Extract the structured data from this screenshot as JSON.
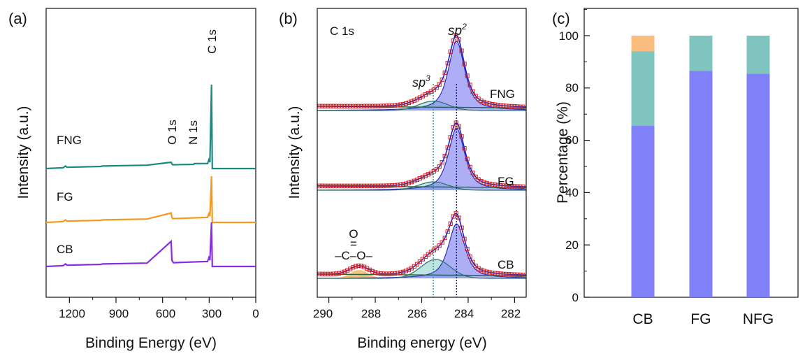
{
  "chart_data": [
    {
      "panel": "(a)",
      "type": "line",
      "xlabel": "Binding Energy (eV)",
      "ylabel": "Intensity (a.u.)",
      "xlim": [
        1350,
        0
      ],
      "xticks": [
        1200,
        900,
        600,
        300,
        0
      ],
      "annotations": [
        "O 1s",
        "N 1s",
        "C 1s"
      ],
      "series": [
        {
          "name": "FNG",
          "color": "#1a8a80",
          "x": [
            1350,
            1240,
            1225,
            1215,
            1000,
            985,
            700,
            545,
            540,
            535,
            400,
            396,
            310,
            302,
            295,
            285,
            280,
            200,
            0
          ],
          "y": [
            1.0,
            1.04,
            1.12,
            1.06,
            1.1,
            1.12,
            1.16,
            1.3,
            1.22,
            1.18,
            1.2,
            1.24,
            1.24,
            1.42,
            1.3,
            5.0,
            1.0,
            1.0,
            1.0
          ]
        },
        {
          "name": "FG",
          "color": "#f39a1e",
          "x": [
            1350,
            1240,
            1225,
            1215,
            1000,
            985,
            700,
            545,
            540,
            535,
            310,
            302,
            295,
            285,
            280,
            200,
            0
          ],
          "y": [
            1.0,
            1.04,
            1.12,
            1.06,
            1.1,
            1.12,
            1.16,
            1.45,
            1.25,
            1.18,
            1.24,
            1.42,
            1.3,
            3.2,
            1.0,
            1.0,
            1.0
          ]
        },
        {
          "name": "CB",
          "color": "#8a2be2",
          "x": [
            1350,
            1240,
            1225,
            1215,
            1000,
            985,
            700,
            545,
            540,
            530,
            310,
            302,
            295,
            285,
            280,
            200,
            0
          ],
          "y": [
            1.0,
            1.04,
            1.12,
            1.06,
            1.1,
            1.12,
            1.16,
            2.2,
            1.3,
            1.18,
            1.24,
            1.42,
            1.3,
            3.1,
            1.0,
            1.0,
            1.0
          ]
        }
      ]
    },
    {
      "panel": "(b)",
      "type": "line",
      "xlabel": "Binding energy (eV)",
      "ylabel": "Intensity (a.u.)",
      "xlim": [
        290.5,
        281.5
      ],
      "xticks": [
        290,
        288,
        286,
        284,
        282
      ],
      "title": "C 1s",
      "annotations": [
        "sp2",
        "sp3",
        "O=C–O–"
      ],
      "reference_lines": [
        285.5,
        284.5
      ],
      "series": [
        {
          "name": "FNG",
          "sp2_center": 284.5,
          "sp2_height": 0.66,
          "sp3_center": 285.5,
          "sp3_height": 0.09
        },
        {
          "name": "FG",
          "sp2_center": 284.5,
          "sp2_height": 0.59,
          "sp3_center": 285.5,
          "sp3_height": 0.08
        },
        {
          "name": "CB",
          "sp2_center": 284.5,
          "sp2_height": 0.52,
          "sp3_center": 285.4,
          "sp3_height": 0.18,
          "coo_center": 288.7,
          "coo_height": 0.08
        }
      ]
    },
    {
      "panel": "(c)",
      "type": "bar",
      "stacked": true,
      "categories": [
        "CB",
        "FG",
        "NFG"
      ],
      "ylabel": "Percentage (%)",
      "ylim": [
        0,
        110
      ],
      "yticks": [
        0,
        20,
        40,
        60,
        80,
        100
      ],
      "series": [
        {
          "name": "sp2",
          "color": "#8080f8",
          "values": [
            65.5,
            86.5,
            85.5
          ]
        },
        {
          "name": "sp3",
          "color": "#80c4c0",
          "values": [
            28.5,
            13.5,
            14.5
          ]
        },
        {
          "name": "O=C–O",
          "color": "#fbbd7e",
          "values": [
            6,
            0,
            0
          ]
        }
      ]
    }
  ],
  "labels": {
    "a": {
      "panel": "(a)",
      "ylabel": "Intensity (a.u.)",
      "xlabel": "Binding Energy (eV)",
      "o1s": "O 1s",
      "n1s": "N 1s",
      "c1s": "C 1s",
      "fng": "FNG",
      "fg": "FG",
      "cb": "CB",
      "t1200": "1200",
      "t900": "900",
      "t600": "600",
      "t300": "300",
      "t0": "0"
    },
    "b": {
      "panel": "(b)",
      "ylabel": "Intensity (a.u.)",
      "xlabel": "Binding energy (eV)",
      "c1s": "C 1s",
      "sp2": "sp",
      "sp2sup": "2",
      "sp3": "sp",
      "sp3sup": "3",
      "fng": "FNG",
      "fg": "FG",
      "cb": "CB",
      "o": "O",
      "dbl": "=",
      "coo": "–C–O–",
      "t290": "290",
      "t288": "288",
      "t286": "286",
      "t284": "284",
      "t282": "282"
    },
    "c": {
      "panel": "(c)",
      "ylabel": "Percentage (%)",
      "t0": "0",
      "t20": "20",
      "t40": "40",
      "t60": "60",
      "t80": "80",
      "t100": "100",
      "cb": "CB",
      "fg": "FG",
      "nfg": "NFG"
    }
  },
  "colors": {
    "fng": "#1a8a80",
    "fg": "#f39a1e",
    "cb": "#8a2be2",
    "sp2_fill": "#7878f0",
    "sp3_fill": "#a8dcd8",
    "coo_fill": "#f6b46c",
    "sym_red": "#d42020",
    "sym_green": "#2a8a2a",
    "ref_blue": "#1a1aa8",
    "ref_teal": "#2a8a8a"
  }
}
